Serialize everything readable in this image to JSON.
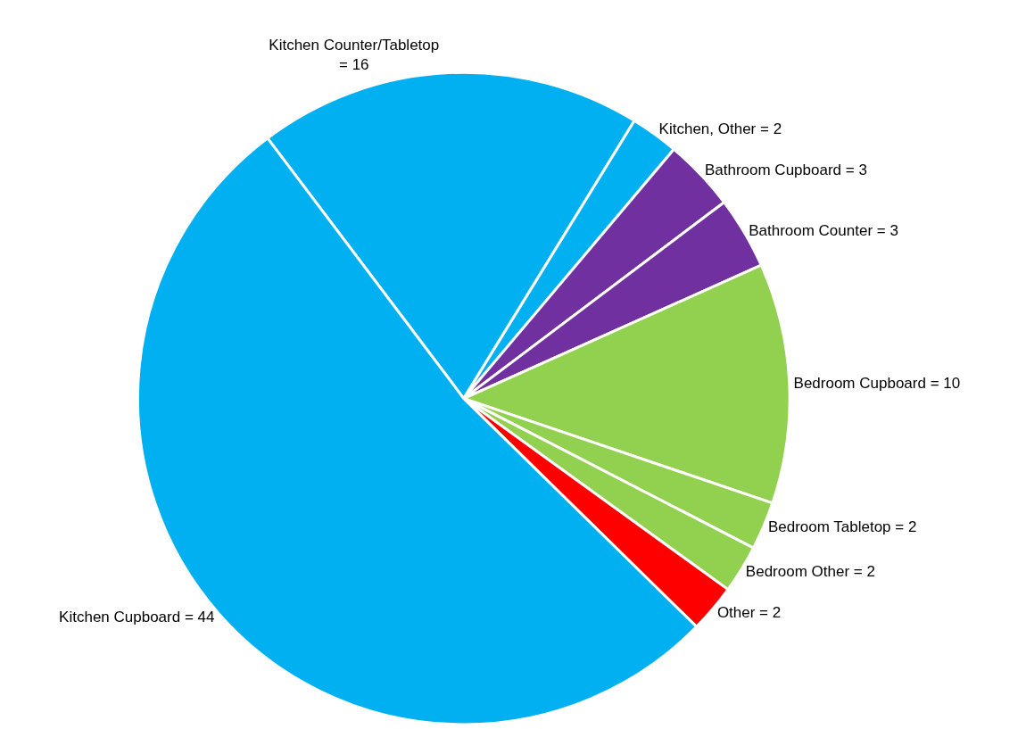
{
  "chart_data": {
    "type": "pie",
    "categories": [
      "Kitchen Counter/Tabletop",
      "Kitchen, Other",
      "Bathroom Cupboard",
      "Bathroom Counter",
      "Bedroom Cupboard",
      "Bedroom Tabletop",
      "Bedroom Other",
      "Other",
      "Kitchen Cupboard"
    ],
    "values": [
      16,
      2,
      3,
      3,
      10,
      2,
      2,
      2,
      44
    ],
    "colors": [
      "#00b0f0",
      "#00b0f0",
      "#7030a0",
      "#7030a0",
      "#92d050",
      "#92d050",
      "#92d050",
      "#ff0000",
      "#00b0f0"
    ],
    "value_labels": [
      "= 16",
      "= 2",
      "= 3",
      "= 3",
      "= 10",
      "= 2",
      "= 2",
      "= 2",
      "= 44"
    ],
    "legend": false
  }
}
